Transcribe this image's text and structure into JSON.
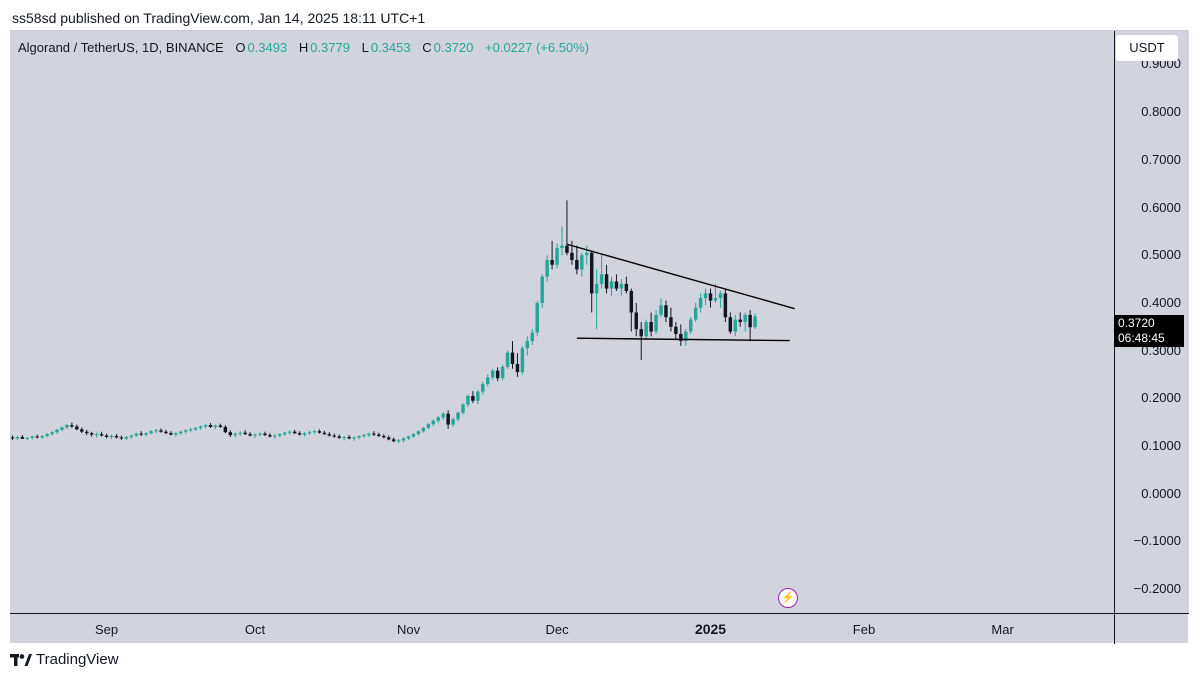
{
  "header": {
    "published": "ss58sd published on TradingView.com, Jan 14, 2025 18:11 UTC+1"
  },
  "legend": {
    "symbol": "Algorand / TetherUS, 1D, BINANCE",
    "open_label": "O",
    "open": "0.3493",
    "high_label": "H",
    "high": "0.3779",
    "low_label": "L",
    "low": "0.3453",
    "close_label": "C",
    "close": "0.3720",
    "change": "+0.0227 (+6.50%)"
  },
  "price_axis": {
    "currency": "USDT",
    "last_price": "0.3720",
    "countdown": "06:48:45"
  },
  "footer": {
    "brand": "TradingView"
  },
  "icons": {
    "brand": "tradingview-logo-icon",
    "lightning": "lightning-icon"
  },
  "colors": {
    "up": "#26a69a",
    "down": "#131722",
    "background": "#d1d4dc",
    "lightning": "#9c27b0"
  },
  "chart_data": {
    "type": "candlestick",
    "title": "Algorand / TetherUS, 1D, BINANCE",
    "ylabel": "USDT",
    "ylim": [
      -0.25,
      0.97
    ],
    "y_ticks": [
      "0.9000",
      "0.8000",
      "0.7000",
      "0.6000",
      "0.5000",
      "0.4000",
      "0.3000",
      "0.2000",
      "0.1000",
      "0.0000",
      "−0.1000",
      "−0.2000"
    ],
    "y_tick_values": [
      0.9,
      0.8,
      0.7,
      0.6,
      0.5,
      0.4,
      0.3,
      0.2,
      0.1,
      0.0,
      -0.1,
      -0.2
    ],
    "x_ticks": [
      {
        "label": "Sep",
        "day": 19,
        "bold": false
      },
      {
        "label": "Oct",
        "day": 49,
        "bold": false
      },
      {
        "label": "Nov",
        "day": 80,
        "bold": false
      },
      {
        "label": "Dec",
        "day": 110,
        "bold": false
      },
      {
        "label": "2025",
        "day": 141,
        "bold": true
      },
      {
        "label": "Feb",
        "day": 172,
        "bold": false
      },
      {
        "label": "Mar",
        "day": 200,
        "bold": false
      }
    ],
    "x_range_days": [
      -0.5,
      222.5
    ],
    "last_day": 155,
    "ohlc": [
      [
        0.118,
        0.122,
        0.113,
        0.116
      ],
      [
        0.116,
        0.121,
        0.113,
        0.119
      ],
      [
        0.119,
        0.123,
        0.115,
        0.115
      ],
      [
        0.115,
        0.119,
        0.112,
        0.117
      ],
      [
        0.117,
        0.122,
        0.114,
        0.12
      ],
      [
        0.12,
        0.124,
        0.116,
        0.118
      ],
      [
        0.118,
        0.123,
        0.115,
        0.121
      ],
      [
        0.121,
        0.127,
        0.118,
        0.125
      ],
      [
        0.125,
        0.131,
        0.122,
        0.129
      ],
      [
        0.129,
        0.136,
        0.126,
        0.134
      ],
      [
        0.134,
        0.141,
        0.131,
        0.139
      ],
      [
        0.139,
        0.146,
        0.136,
        0.144
      ],
      [
        0.144,
        0.149,
        0.138,
        0.141
      ],
      [
        0.141,
        0.145,
        0.133,
        0.135
      ],
      [
        0.135,
        0.139,
        0.127,
        0.13
      ],
      [
        0.13,
        0.134,
        0.123,
        0.127
      ],
      [
        0.127,
        0.13,
        0.12,
        0.124
      ],
      [
        0.124,
        0.128,
        0.118,
        0.125
      ],
      [
        0.125,
        0.13,
        0.12,
        0.122
      ],
      [
        0.122,
        0.126,
        0.116,
        0.119
      ],
      [
        0.119,
        0.124,
        0.115,
        0.121
      ],
      [
        0.121,
        0.125,
        0.116,
        0.118
      ],
      [
        0.118,
        0.122,
        0.113,
        0.116
      ],
      [
        0.116,
        0.121,
        0.112,
        0.119
      ],
      [
        0.119,
        0.124,
        0.115,
        0.122
      ],
      [
        0.122,
        0.128,
        0.119,
        0.126
      ],
      [
        0.126,
        0.131,
        0.121,
        0.124
      ],
      [
        0.124,
        0.129,
        0.12,
        0.127
      ],
      [
        0.127,
        0.133,
        0.124,
        0.131
      ],
      [
        0.131,
        0.136,
        0.127,
        0.133
      ],
      [
        0.133,
        0.137,
        0.128,
        0.13
      ],
      [
        0.13,
        0.134,
        0.125,
        0.127
      ],
      [
        0.127,
        0.131,
        0.122,
        0.124
      ],
      [
        0.124,
        0.129,
        0.12,
        0.127
      ],
      [
        0.127,
        0.132,
        0.123,
        0.13
      ],
      [
        0.13,
        0.135,
        0.126,
        0.133
      ],
      [
        0.133,
        0.138,
        0.129,
        0.135
      ],
      [
        0.135,
        0.14,
        0.131,
        0.138
      ],
      [
        0.138,
        0.143,
        0.134,
        0.141
      ],
      [
        0.141,
        0.146,
        0.137,
        0.144
      ],
      [
        0.144,
        0.148,
        0.138,
        0.14
      ],
      [
        0.14,
        0.145,
        0.136,
        0.143
      ],
      [
        0.143,
        0.147,
        0.138,
        0.14
      ],
      [
        0.14,
        0.144,
        0.127,
        0.129
      ],
      [
        0.129,
        0.133,
        0.119,
        0.123
      ],
      [
        0.123,
        0.128,
        0.118,
        0.126
      ],
      [
        0.126,
        0.131,
        0.121,
        0.128
      ],
      [
        0.128,
        0.133,
        0.123,
        0.125
      ],
      [
        0.125,
        0.129,
        0.12,
        0.122
      ],
      [
        0.122,
        0.126,
        0.117,
        0.124
      ],
      [
        0.124,
        0.129,
        0.12,
        0.126
      ],
      [
        0.126,
        0.13,
        0.121,
        0.123
      ],
      [
        0.123,
        0.127,
        0.118,
        0.12
      ],
      [
        0.12,
        0.125,
        0.116,
        0.122
      ],
      [
        0.122,
        0.127,
        0.118,
        0.125
      ],
      [
        0.125,
        0.13,
        0.121,
        0.128
      ],
      [
        0.128,
        0.133,
        0.124,
        0.13
      ],
      [
        0.13,
        0.134,
        0.125,
        0.127
      ],
      [
        0.127,
        0.131,
        0.122,
        0.124
      ],
      [
        0.124,
        0.129,
        0.12,
        0.127
      ],
      [
        0.127,
        0.132,
        0.123,
        0.129
      ],
      [
        0.129,
        0.134,
        0.125,
        0.131
      ],
      [
        0.131,
        0.135,
        0.126,
        0.128
      ],
      [
        0.128,
        0.132,
        0.123,
        0.125
      ],
      [
        0.125,
        0.129,
        0.12,
        0.122
      ],
      [
        0.122,
        0.126,
        0.117,
        0.12
      ],
      [
        0.12,
        0.124,
        0.115,
        0.117
      ],
      [
        0.117,
        0.121,
        0.112,
        0.119
      ],
      [
        0.119,
        0.123,
        0.114,
        0.116
      ],
      [
        0.116,
        0.12,
        0.111,
        0.118
      ],
      [
        0.118,
        0.122,
        0.114,
        0.121
      ],
      [
        0.121,
        0.126,
        0.117,
        0.123
      ],
      [
        0.123,
        0.128,
        0.119,
        0.126
      ],
      [
        0.126,
        0.131,
        0.121,
        0.124
      ],
      [
        0.124,
        0.128,
        0.119,
        0.121
      ],
      [
        0.121,
        0.125,
        0.116,
        0.118
      ],
      [
        0.118,
        0.122,
        0.112,
        0.114
      ],
      [
        0.114,
        0.118,
        0.108,
        0.11
      ],
      [
        0.11,
        0.115,
        0.106,
        0.112
      ],
      [
        0.112,
        0.118,
        0.108,
        0.116
      ],
      [
        0.116,
        0.122,
        0.113,
        0.12
      ],
      [
        0.12,
        0.127,
        0.117,
        0.125
      ],
      [
        0.125,
        0.133,
        0.122,
        0.131
      ],
      [
        0.131,
        0.14,
        0.128,
        0.138
      ],
      [
        0.138,
        0.148,
        0.135,
        0.146
      ],
      [
        0.146,
        0.156,
        0.142,
        0.153
      ],
      [
        0.153,
        0.163,
        0.148,
        0.16
      ],
      [
        0.16,
        0.171,
        0.155,
        0.168
      ],
      [
        0.168,
        0.175,
        0.136,
        0.145
      ],
      [
        0.145,
        0.16,
        0.14,
        0.156
      ],
      [
        0.156,
        0.172,
        0.152,
        0.17
      ],
      [
        0.17,
        0.19,
        0.166,
        0.187
      ],
      [
        0.187,
        0.208,
        0.182,
        0.205
      ],
      [
        0.205,
        0.215,
        0.19,
        0.195
      ],
      [
        0.195,
        0.218,
        0.188,
        0.214
      ],
      [
        0.214,
        0.235,
        0.208,
        0.23
      ],
      [
        0.23,
        0.25,
        0.225,
        0.244
      ],
      [
        0.244,
        0.262,
        0.238,
        0.258
      ],
      [
        0.258,
        0.265,
        0.236,
        0.242
      ],
      [
        0.242,
        0.27,
        0.238,
        0.266
      ],
      [
        0.266,
        0.3,
        0.262,
        0.296
      ],
      [
        0.296,
        0.32,
        0.262,
        0.272
      ],
      [
        0.272,
        0.295,
        0.245,
        0.255
      ],
      [
        0.255,
        0.31,
        0.25,
        0.305
      ],
      [
        0.305,
        0.33,
        0.29,
        0.32
      ],
      [
        0.32,
        0.345,
        0.312,
        0.338
      ],
      [
        0.338,
        0.405,
        0.33,
        0.4
      ],
      [
        0.4,
        0.46,
        0.39,
        0.455
      ],
      [
        0.455,
        0.5,
        0.445,
        0.49
      ],
      [
        0.49,
        0.53,
        0.47,
        0.48
      ],
      [
        0.48,
        0.525,
        0.472,
        0.515
      ],
      [
        0.515,
        0.56,
        0.5,
        0.52
      ],
      [
        0.52,
        0.615,
        0.5,
        0.505
      ],
      [
        0.505,
        0.53,
        0.48,
        0.49
      ],
      [
        0.49,
        0.52,
        0.46,
        0.47
      ],
      [
        0.47,
        0.505,
        0.455,
        0.5
      ],
      [
        0.5,
        0.52,
        0.48,
        0.505
      ],
      [
        0.505,
        0.51,
        0.38,
        0.42
      ],
      [
        0.42,
        0.47,
        0.345,
        0.44
      ],
      [
        0.44,
        0.5,
        0.43,
        0.46
      ],
      [
        0.46,
        0.48,
        0.42,
        0.43
      ],
      [
        0.43,
        0.455,
        0.415,
        0.445
      ],
      [
        0.445,
        0.46,
        0.425,
        0.43
      ],
      [
        0.43,
        0.45,
        0.415,
        0.44
      ],
      [
        0.44,
        0.455,
        0.42,
        0.425
      ],
      [
        0.425,
        0.43,
        0.34,
        0.38
      ],
      [
        0.38,
        0.4,
        0.33,
        0.345
      ],
      [
        0.345,
        0.36,
        0.28,
        0.33
      ],
      [
        0.33,
        0.365,
        0.325,
        0.36
      ],
      [
        0.36,
        0.38,
        0.33,
        0.34
      ],
      [
        0.34,
        0.385,
        0.335,
        0.375
      ],
      [
        0.375,
        0.41,
        0.37,
        0.395
      ],
      [
        0.395,
        0.405,
        0.36,
        0.37
      ],
      [
        0.37,
        0.39,
        0.34,
        0.35
      ],
      [
        0.35,
        0.36,
        0.325,
        0.335
      ],
      [
        0.335,
        0.355,
        0.31,
        0.32
      ],
      [
        0.32,
        0.345,
        0.31,
        0.34
      ],
      [
        0.34,
        0.37,
        0.335,
        0.365
      ],
      [
        0.365,
        0.4,
        0.36,
        0.39
      ],
      [
        0.39,
        0.42,
        0.38,
        0.41
      ],
      [
        0.41,
        0.43,
        0.395,
        0.42
      ],
      [
        0.42,
        0.43,
        0.39,
        0.405
      ],
      [
        0.405,
        0.44,
        0.4,
        0.41
      ],
      [
        0.41,
        0.425,
        0.39,
        0.42
      ],
      [
        0.42,
        0.43,
        0.36,
        0.37
      ],
      [
        0.37,
        0.38,
        0.335,
        0.34
      ],
      [
        0.34,
        0.375,
        0.33,
        0.365
      ],
      [
        0.365,
        0.38,
        0.35,
        0.36
      ],
      [
        0.36,
        0.38,
        0.34,
        0.375
      ],
      [
        0.375,
        0.385,
        0.32,
        0.349
      ],
      [
        0.3493,
        0.3779,
        0.3453,
        0.372
      ]
    ],
    "trendlines": [
      {
        "name": "upper",
        "from": {
          "day": 112,
          "price": 0.523
        },
        "to": {
          "day": 158,
          "price": 0.388
        }
      },
      {
        "name": "lower",
        "from": {
          "day": 114,
          "price": 0.326
        },
        "to": {
          "day": 157,
          "price": 0.321
        }
      }
    ]
  }
}
